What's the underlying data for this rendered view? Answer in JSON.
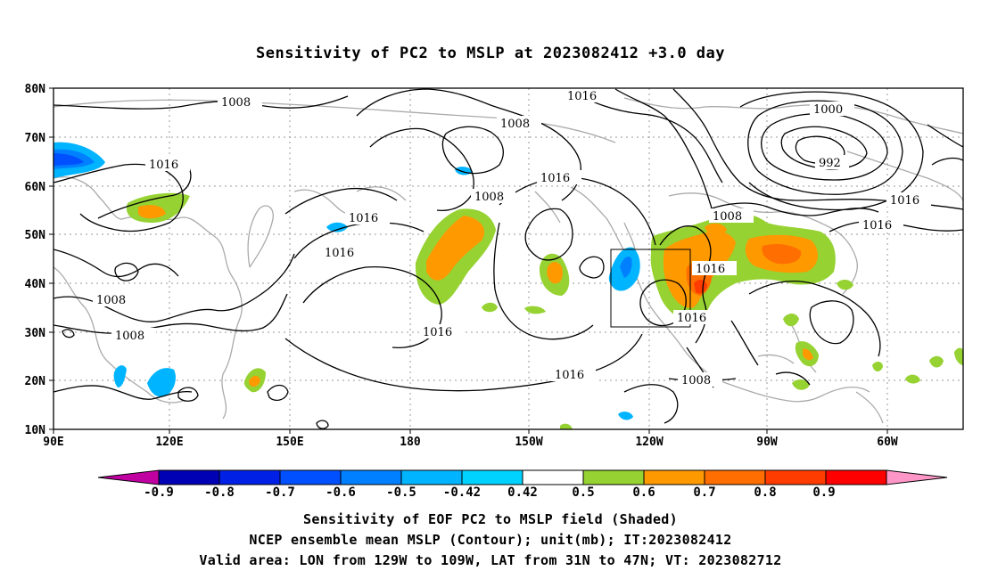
{
  "title": "Sensitivity of PC2 to MSLP at 2023082412 +3.0 day",
  "map": {
    "lat_labels": [
      "80N",
      "70N",
      "60N",
      "50N",
      "40N",
      "30N",
      "20N",
      "10N"
    ],
    "lon_labels": [
      "90E",
      "120E",
      "150E",
      "180",
      "150W",
      "120W",
      "90W",
      "60W"
    ],
    "contour_labels": [
      "1008",
      "1016",
      "1008",
      "1016",
      "1000",
      "992",
      "1016",
      "1008",
      "1016",
      "1016",
      "1008",
      "1016",
      "1016",
      "1008",
      "1016",
      "1016",
      "1008",
      "1016"
    ],
    "valid_area_box": {
      "lon_from": "129W",
      "lon_to": "109W",
      "lat_from": "31N",
      "lat_to": "47N"
    }
  },
  "colorbar": {
    "labels": [
      "-0.9",
      "-0.8",
      "-0.7",
      "-0.6",
      "-0.5",
      "-0.42",
      "0.42",
      "0.5",
      "0.6",
      "0.7",
      "0.8",
      "0.9"
    ],
    "colors": [
      "#c000a0",
      "#0000b4",
      "#0020e6",
      "#0050ff",
      "#0080ff",
      "#00b4ff",
      "#00d2ff",
      "#ffffff",
      "#96d232",
      "#ff9900",
      "#ff6e00",
      "#ff3c00",
      "#ff0000",
      "#ff96c8"
    ]
  },
  "captions": {
    "line1": "Sensitivity of EOF PC2 to MSLP field (Shaded)",
    "line2": "NCEP ensemble mean MSLP (Contour); unit(mb); IT:2023082412",
    "line3": "Valid area: LON from 129W to 109W, LAT from 31N to 47N; VT: 2023082712"
  }
}
